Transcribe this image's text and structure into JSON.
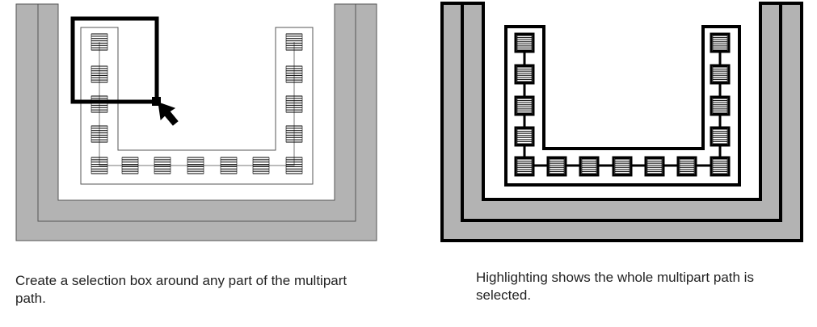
{
  "captions": {
    "left": "Create a selection box around any part of the multipart path.",
    "right": "Highlighting shows the whole multipart path is selected."
  },
  "colors": {
    "background": "#ffffff",
    "fill": "#b3b3b3",
    "stroke": "#000000",
    "thin_line": "#555555"
  },
  "icons": {
    "pointer": "arrow-pointer-icon",
    "contact": "hatched-contact-icon"
  },
  "state": {
    "left": "unselected",
    "right": "selected"
  }
}
